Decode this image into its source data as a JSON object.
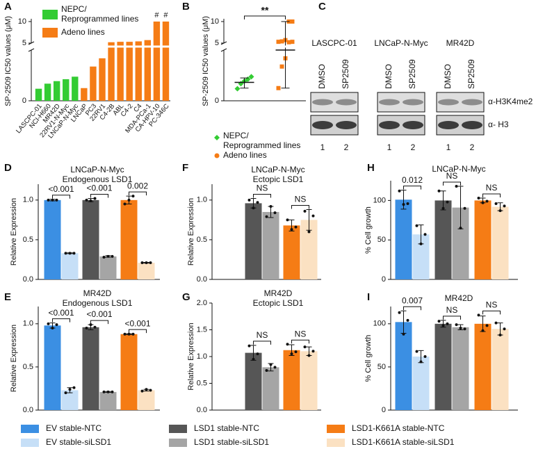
{
  "chart_data": [
    {
      "type": "bar",
      "panel": "A",
      "ylabel": "SP-2509 IC50 values (μM)",
      "categories": [
        "LASCPC-01",
        "NCI-H660",
        "MR42D",
        "22RV1-N-Myc",
        "LNCaP-N-Myc",
        "LNCaP",
        "PC3",
        "22RV1",
        "C4-2B",
        "ABL",
        "C4-2",
        "C4",
        "MDA-PCa-1",
        "CA-HPV-10",
        "PC-346C"
      ],
      "series": [
        {
          "name": "NEPC/\nReprogrammed lines",
          "color": "#33cc33",
          "values": [
            0.19,
            0.27,
            0.31,
            0.34,
            0.38,
            null,
            null,
            null,
            null,
            null,
            null,
            null,
            null,
            null,
            null
          ]
        },
        {
          "name": "Adeno lines",
          "color": "#f57c15",
          "values": [
            null,
            null,
            null,
            null,
            null,
            0.2,
            0.54,
            0.67,
            5.2,
            5.3,
            5.3,
            5.4,
            5.7,
            10,
            10
          ]
        }
      ],
      "ylim": [
        0,
        10
      ],
      "ybreak": [
        0.8,
        5
      ],
      "yticks": [
        0,
        5,
        10
      ],
      "legend": "top-left",
      "annotations": [
        {
          "category": "CA-HPV-10",
          "text": "#"
        },
        {
          "category": "PC-346C",
          "text": "#"
        }
      ]
    },
    {
      "type": "strip",
      "panel": "B",
      "ylabel": "SP-2509 IC50 values (μM)",
      "series": [
        {
          "name": "NEPC/\nReprogrammed lines",
          "color": "#33cc33",
          "marker": "diamond",
          "values": [
            0.19,
            0.27,
            0.31,
            0.34,
            0.38
          ],
          "center": 0.29,
          "range": [
            0.2,
            0.36
          ]
        },
        {
          "name": "Adeno lines",
          "color": "#f57c15",
          "marker": "circle",
          "values": [
            0.2,
            0.54,
            0.67,
            5.2,
            5.3,
            5.3,
            5.4,
            5.7,
            10,
            10
          ],
          "center": 0.8,
          "range": [
            0.2,
            10
          ]
        }
      ],
      "ylim": [
        0,
        10
      ],
      "ybreak": [
        0.8,
        5
      ],
      "yticks": [
        0,
        5,
        10
      ],
      "significance": "**",
      "legend": "bottom"
    },
    {
      "type": "grouped-bar",
      "panel": "D",
      "title": "LNCaP-N-Myc\nEndogenous LSD1",
      "ylabel": "Relative Expression",
      "values": [
        1.0,
        0.33,
        1.0,
        0.29,
        1.0,
        0.21
      ],
      "errors": [
        0.01,
        0.005,
        0.02,
        0.01,
        0.05,
        0.005
      ],
      "points": [
        [
          1.0,
          1.0,
          1.0
        ],
        [
          0.33,
          0.33,
          0.33
        ],
        [
          1.0,
          0.99,
          1.02
        ],
        [
          0.28,
          0.29,
          0.29
        ],
        [
          0.95,
          1.0,
          1.05
        ],
        [
          0.21,
          0.21,
          0.21
        ]
      ],
      "comparisons": [
        "<0.001",
        "<0.001",
        "0.002"
      ],
      "ylim": [
        0,
        1.2
      ],
      "yticks": [
        {
          "value": 0,
          "label": "0.0"
        },
        {
          "value": 0.5,
          "label": "0.5"
        },
        {
          "value": 1,
          "label": "1.0"
        }
      ]
    },
    {
      "type": "grouped-bar",
      "panel": "E",
      "title": "MR42D\nEndogenous LSD1",
      "ylabel": "Relative Expression",
      "values": [
        0.98,
        0.23,
        0.96,
        0.21,
        0.88,
        0.23
      ],
      "errors": [
        0.03,
        0.03,
        0.03,
        0.005,
        0.005,
        0.01
      ],
      "points": [
        [
          1.0,
          0.95,
          0.99
        ],
        [
          0.2,
          0.24,
          0.26
        ],
        [
          0.95,
          0.99,
          0.96
        ],
        [
          0.21,
          0.21,
          0.21
        ],
        [
          0.88,
          0.88,
          0.88
        ],
        [
          0.22,
          0.24,
          0.23
        ]
      ],
      "comparisons": [
        "<0.001",
        "<0.001",
        "<0.001"
      ],
      "ylim": [
        0,
        1.2
      ],
      "yticks": [
        {
          "value": 0,
          "label": "0.0"
        },
        {
          "value": 0.5,
          "label": "0.5"
        },
        {
          "value": 1,
          "label": "1.0"
        }
      ]
    },
    {
      "type": "grouped-bar",
      "panel": "F",
      "title": "LNCaP-N-Myc\nEctopic LSD1",
      "ylabel": "Relative Expression",
      "values": [
        null,
        null,
        0.96,
        0.85,
        0.68,
        0.75
      ],
      "errors": [
        null,
        null,
        0.06,
        0.07,
        0.07,
        0.13
      ],
      "points": [
        null,
        null,
        [
          1.0,
          0.9,
          0.97
        ],
        [
          0.79,
          0.92,
          0.84
        ],
        [
          0.75,
          0.63,
          0.66
        ],
        [
          0.86,
          0.6,
          0.8
        ]
      ],
      "comparisons": [
        null,
        "NS",
        "NS"
      ],
      "ylim": [
        0,
        1.2
      ],
      "yticks": [
        {
          "value": 0,
          "label": "0.0"
        },
        {
          "value": 0.5,
          "label": "0.5"
        },
        {
          "value": 1,
          "label": "1.0"
        }
      ]
    },
    {
      "type": "grouped-bar",
      "panel": "G",
      "title": "MR42D\nEctopic LSD1",
      "ylabel": "Relative Expression",
      "values": [
        null,
        null,
        1.07,
        0.8,
        1.12,
        1.1
      ],
      "errors": [
        null,
        null,
        0.14,
        0.07,
        0.1,
        0.08
      ],
      "points": [
        null,
        null,
        [
          1.2,
          0.95,
          1.05
        ],
        [
          0.74,
          0.85,
          0.8
        ],
        [
          1.23,
          1.05,
          1.09
        ],
        [
          1.18,
          1.02,
          1.1
        ]
      ],
      "comparisons": [
        null,
        "NS",
        "NS"
      ],
      "ylim": [
        0,
        2
      ],
      "yticks": [
        {
          "value": 0,
          "label": "0.0"
        },
        {
          "value": 0.5,
          "label": "0.5"
        },
        {
          "value": 1,
          "label": "1.0"
        },
        {
          "value": 1.5,
          "label": "1.5"
        },
        {
          "value": 2,
          "label": "2.0"
        }
      ]
    },
    {
      "type": "grouped-bar",
      "panel": "H",
      "title": "LNCaP-N-Myc",
      "ylabel": "% Cell growth",
      "values": [
        101,
        57,
        100,
        91,
        100,
        92
      ],
      "errors": [
        12,
        12,
        12,
        27,
        3,
        5
      ],
      "points": [
        [
          112,
          95,
          96
        ],
        [
          68,
          45,
          57
        ],
        [
          112,
          90,
          98
        ],
        [
          118,
          65,
          90
        ],
        [
          103,
          97,
          99
        ],
        [
          96,
          87,
          93
        ]
      ],
      "comparisons": [
        "0.012",
        "NS",
        "NS"
      ],
      "ylim": [
        0,
        125
      ],
      "yticks": [
        0,
        50,
        100
      ]
    },
    {
      "type": "grouped-bar",
      "panel": "I",
      "title": "MR42D",
      "ylabel": "% Cell growth",
      "values": [
        102,
        62,
        100,
        96,
        100,
        94
      ],
      "errors": [
        13,
        7,
        4,
        3,
        9,
        7
      ],
      "points": [
        [
          113,
          88,
          104
        ],
        [
          68,
          56,
          62
        ],
        [
          103,
          98,
          100
        ],
        [
          99,
          95,
          94
        ],
        [
          110,
          92,
          98
        ],
        [
          101,
          87,
          94
        ]
      ],
      "comparisons": [
        "0.007",
        "NS",
        "NS"
      ],
      "ylim": [
        0,
        120
      ],
      "yticks": [
        0,
        50,
        100
      ]
    }
  ],
  "blot": {
    "panel": "C",
    "groups": [
      "LASCPC-01",
      "LNCaP-N-Myc",
      "MR42D"
    ],
    "lanes": [
      "DMSO",
      "SP2509"
    ],
    "lane_numbers": [
      "1",
      "2"
    ],
    "rows": [
      "α-H3K4me2",
      "α- H3"
    ]
  },
  "legend": {
    "series": [
      {
        "name": "EV stable-NTC",
        "color": "#3b8fe3"
      },
      {
        "name": "EV stable-siLSD1",
        "color": "#c6dff7"
      },
      {
        "name": "LSD1 stable-NTC",
        "color": "#565656"
      },
      {
        "name": "LSD1 stable-siLSD1",
        "color": "#a5a5a5"
      },
      {
        "name": "LSD1-K661A stable-NTC",
        "color": "#f57c15"
      },
      {
        "name": "LSD1-K661A stable-siLSD1",
        "color": "#fbe1c2"
      }
    ]
  }
}
